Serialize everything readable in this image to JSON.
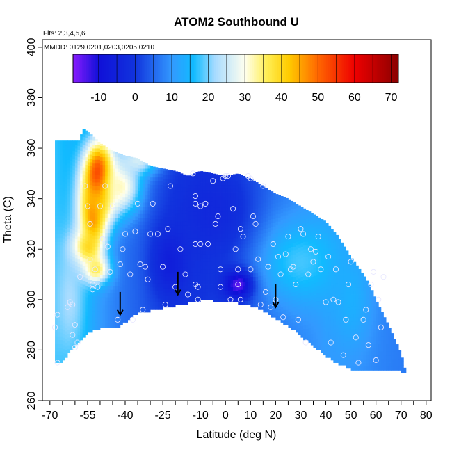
{
  "chart_data": {
    "type": "heatmap",
    "title": "ATOM2 Southbound U",
    "notes": [
      "Flts: 2,3,4,5,6",
      "MMDD: 0129,0201,0203,0205,0210"
    ],
    "xlabel": "Latitude (deg N)",
    "ylabel": "Theta (C)",
    "xlim": [
      -70,
      80
    ],
    "ylim": [
      260,
      400
    ],
    "x_ticks_labeled": [
      "-70",
      "-55",
      "-40",
      "-25",
      "-10",
      "0",
      "10",
      "20",
      "30",
      "40",
      "50",
      "60",
      "70",
      "80"
    ],
    "y_ticks": [
      "260",
      "280",
      "300",
      "320",
      "340",
      "360",
      "380",
      "400"
    ],
    "colorbar": {
      "range": [
        -17,
        72
      ],
      "ticks": [
        "-10",
        "0",
        "10",
        "20",
        "30",
        "40",
        "50",
        "60",
        "70"
      ],
      "stops": [
        {
          "v": -17,
          "c": "#8a1cff"
        },
        {
          "v": -10,
          "c": "#1010d8"
        },
        {
          "v": 0,
          "c": "#1133dd"
        },
        {
          "v": 10,
          "c": "#3399ff"
        },
        {
          "v": 16,
          "c": "#11bbff"
        },
        {
          "v": 22,
          "c": "#aadcff"
        },
        {
          "v": 30,
          "c": "#ffffee"
        },
        {
          "v": 36,
          "c": "#ffee55"
        },
        {
          "v": 42,
          "c": "#ffcc00"
        },
        {
          "v": 50,
          "c": "#ff6600"
        },
        {
          "v": 60,
          "c": "#ee0000"
        },
        {
          "v": 72,
          "c": "#8a0000"
        }
      ]
    },
    "domain": {
      "top": [
        [
          -58,
          363
        ],
        [
          -57,
          368
        ],
        [
          -54,
          366
        ],
        [
          -50,
          362
        ],
        [
          -45,
          359
        ],
        [
          -40,
          357
        ],
        [
          -35,
          356
        ],
        [
          -30,
          353
        ],
        [
          -25,
          352
        ],
        [
          -20,
          351
        ],
        [
          -15,
          349
        ],
        [
          -10,
          351
        ],
        [
          -5,
          350
        ],
        [
          0,
          349
        ],
        [
          5,
          350
        ],
        [
          10,
          348
        ],
        [
          15,
          345
        ],
        [
          20,
          342
        ],
        [
          25,
          340
        ],
        [
          30,
          337
        ],
        [
          35,
          334
        ],
        [
          40,
          331
        ],
        [
          45,
          325
        ],
        [
          50,
          317
        ],
        [
          55,
          310
        ],
        [
          58,
          305
        ],
        [
          60,
          300
        ],
        [
          65,
          290
        ],
        [
          70,
          279
        ],
        [
          72,
          271
        ]
      ],
      "bottom": [
        [
          -68,
          275
        ],
        [
          -65,
          276
        ],
        [
          -60,
          282
        ],
        [
          -55,
          287
        ],
        [
          -50,
          289
        ],
        [
          -45,
          289
        ],
        [
          -42,
          290
        ],
        [
          -38,
          293
        ],
        [
          -35,
          295
        ],
        [
          -30,
          296
        ],
        [
          -25,
          297
        ],
        [
          -20,
          298
        ],
        [
          -15,
          299
        ],
        [
          -10,
          300
        ],
        [
          -8,
          301
        ],
        [
          -5,
          300
        ],
        [
          0,
          299
        ],
        [
          5,
          299
        ],
        [
          10,
          298
        ],
        [
          15,
          296
        ],
        [
          20,
          293
        ],
        [
          25,
          290
        ],
        [
          30,
          286
        ],
        [
          35,
          282
        ],
        [
          40,
          278
        ],
        [
          45,
          275
        ],
        [
          50,
          273
        ],
        [
          55,
          272
        ],
        [
          60,
          272
        ],
        [
          65,
          272
        ],
        [
          70,
          272
        ],
        [
          72,
          271
        ]
      ]
    },
    "field_features": [
      {
        "x": -50,
        "y": 348,
        "v": 66,
        "sx": 4.5,
        "sy": 10
      },
      {
        "x": -53,
        "y": 333,
        "v": 48,
        "sx": 4,
        "sy": 10
      },
      {
        "x": -56,
        "y": 320,
        "v": 45,
        "sx": 4,
        "sy": 5
      },
      {
        "x": -52,
        "y": 312,
        "v": 38,
        "sx": 4,
        "sy": 4
      },
      {
        "x": -42,
        "y": 345,
        "v": 32,
        "sx": 6,
        "sy": 8
      },
      {
        "x": -35,
        "y": 355,
        "v": 26,
        "sx": 6,
        "sy": 4
      },
      {
        "x": -62,
        "y": 300,
        "v": 22,
        "sx": 5,
        "sy": 18
      },
      {
        "x": 30,
        "y": 315,
        "v": 18,
        "sx": 12,
        "sy": 12
      },
      {
        "x": 50,
        "y": 300,
        "v": 14,
        "sx": 6,
        "sy": 15
      },
      {
        "x": 5,
        "y": 306,
        "v": -15,
        "sx": 4,
        "sy": 4
      },
      {
        "x": -22,
        "y": 315,
        "v": -6,
        "sx": 5,
        "sy": 10
      },
      {
        "x": -5,
        "y": 335,
        "v": -3,
        "sx": 10,
        "sy": 12
      }
    ],
    "field_base": [
      [
        -70,
        18
      ],
      [
        -60,
        14
      ],
      [
        -50,
        10
      ],
      [
        -40,
        6
      ],
      [
        -30,
        3
      ],
      [
        -20,
        1
      ],
      [
        -10,
        0
      ],
      [
        0,
        1
      ],
      [
        10,
        3
      ],
      [
        20,
        6
      ],
      [
        30,
        8
      ],
      [
        40,
        10
      ],
      [
        50,
        9
      ],
      [
        60,
        8
      ],
      [
        72,
        7
      ]
    ],
    "tropopause_arrows": [
      [
        -42,
        296
      ],
      [
        -19,
        304
      ],
      [
        20,
        299
      ]
    ],
    "observations": [
      [
        -68,
        289
      ],
      [
        -67,
        294
      ],
      [
        -67,
        275
      ],
      [
        -63,
        297
      ],
      [
        -62,
        299
      ],
      [
        -61,
        298
      ],
      [
        -61,
        286
      ],
      [
        -60,
        290
      ],
      [
        -60,
        281
      ],
      [
        -59,
        283
      ],
      [
        -58,
        309
      ],
      [
        -56,
        345
      ],
      [
        -55,
        337
      ],
      [
        -54,
        316
      ],
      [
        -54,
        330
      ],
      [
        -53,
        306
      ],
      [
        -53,
        304
      ],
      [
        -52,
        312
      ],
      [
        -51,
        305
      ],
      [
        -50,
        337
      ],
      [
        -49,
        324
      ],
      [
        -48,
        345
      ],
      [
        -47,
        321
      ],
      [
        -46,
        311
      ],
      [
        -45,
        337
      ],
      [
        -43,
        292
      ],
      [
        -42,
        314
      ],
      [
        -41,
        320
      ],
      [
        -40,
        326
      ],
      [
        -38,
        310
      ],
      [
        -37,
        292
      ],
      [
        -36,
        327
      ],
      [
        -35,
        338
      ],
      [
        -34,
        314
      ],
      [
        -33,
        296
      ],
      [
        -32,
        313
      ],
      [
        -31,
        308
      ],
      [
        -30,
        326
      ],
      [
        -29,
        338
      ],
      [
        -27,
        326
      ],
      [
        -25,
        313
      ],
      [
        -24,
        298
      ],
      [
        -23,
        328
      ],
      [
        -22,
        345
      ],
      [
        -20,
        305
      ],
      [
        -18,
        320
      ],
      [
        -16,
        310
      ],
      [
        -15,
        302
      ],
      [
        -13,
        350
      ],
      [
        -12,
        341
      ],
      [
        -12,
        338
      ],
      [
        -12,
        322
      ],
      [
        -12,
        306
      ],
      [
        -11,
        305
      ],
      [
        -11,
        300
      ],
      [
        -10,
        322
      ],
      [
        -10,
        337
      ],
      [
        -8,
        338
      ],
      [
        -7,
        322
      ],
      [
        -5,
        347
      ],
      [
        -4,
        330
      ],
      [
        -3,
        333
      ],
      [
        -2,
        312
      ],
      [
        -2,
        305
      ],
      [
        -1,
        348
      ],
      [
        0,
        349
      ],
      [
        1,
        349
      ],
      [
        2,
        300
      ],
      [
        3,
        336
      ],
      [
        4,
        320
      ],
      [
        5,
        306
      ],
      [
        5,
        312
      ],
      [
        6,
        300
      ],
      [
        6,
        328
      ],
      [
        7,
        325
      ],
      [
        9,
        349
      ],
      [
        10,
        348
      ],
      [
        10,
        312
      ],
      [
        11,
        333
      ],
      [
        12,
        330
      ],
      [
        13,
        316
      ],
      [
        14,
        298
      ],
      [
        15,
        345
      ],
      [
        16,
        303
      ],
      [
        17,
        313
      ],
      [
        18,
        297
      ],
      [
        19,
        322
      ],
      [
        20,
        300
      ],
      [
        21,
        317
      ],
      [
        22,
        310
      ],
      [
        23,
        293
      ],
      [
        24,
        318
      ],
      [
        25,
        325
      ],
      [
        26,
        312
      ],
      [
        27,
        313
      ],
      [
        28,
        306
      ],
      [
        29,
        292
      ],
      [
        30,
        328
      ],
      [
        31,
        326
      ],
      [
        32,
        283
      ],
      [
        33,
        310
      ],
      [
        34,
        320
      ],
      [
        35,
        315
      ],
      [
        36,
        319
      ],
      [
        37,
        325
      ],
      [
        38,
        312
      ],
      [
        40,
        299
      ],
      [
        41,
        317
      ],
      [
        42,
        283
      ],
      [
        43,
        300
      ],
      [
        44,
        312
      ],
      [
        45,
        299
      ],
      [
        47,
        278
      ],
      [
        48,
        292
      ],
      [
        49,
        306
      ],
      [
        50,
        315
      ],
      [
        52,
        285
      ],
      [
        53,
        275
      ],
      [
        55,
        292
      ],
      [
        56,
        296
      ],
      [
        57,
        282
      ],
      [
        58,
        306
      ],
      [
        59,
        311
      ],
      [
        60,
        276
      ],
      [
        61,
        300
      ],
      [
        62,
        289
      ],
      [
        63,
        309
      ]
    ]
  }
}
